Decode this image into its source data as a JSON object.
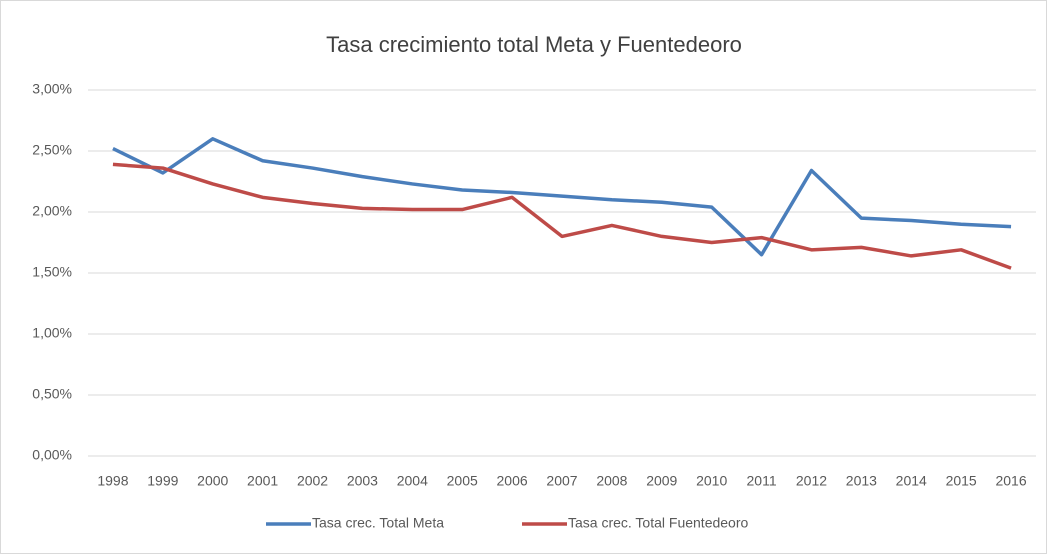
{
  "chart_data": {
    "type": "line",
    "title": "Tasa crecimiento total Meta y Fuentedeoro",
    "categories": [
      "1998",
      "1999",
      "2000",
      "2001",
      "2002",
      "2003",
      "2004",
      "2005",
      "2006",
      "2007",
      "2008",
      "2009",
      "2010",
      "2011",
      "2012",
      "2013",
      "2014",
      "2015",
      "2016"
    ],
    "series": [
      {
        "name": "Tasa crec. Total Meta",
        "color": "#4a7ebb",
        "values": [
          2.52,
          2.32,
          2.6,
          2.42,
          2.36,
          2.29,
          2.23,
          2.18,
          2.16,
          2.13,
          2.1,
          2.08,
          2.04,
          1.65,
          2.34,
          1.95,
          1.93,
          1.9,
          1.88
        ]
      },
      {
        "name": "Tasa crec. Total Fuentedeoro",
        "color": "#be4b48",
        "values": [
          2.39,
          2.36,
          2.23,
          2.12,
          2.07,
          2.03,
          2.02,
          2.02,
          2.12,
          1.8,
          1.89,
          1.8,
          1.75,
          1.79,
          1.69,
          1.71,
          1.64,
          1.69,
          1.54
        ]
      }
    ],
    "ylim": [
      0,
      3
    ],
    "yticks": [
      {
        "value": 0,
        "label": "0,00%"
      },
      {
        "value": 0.5,
        "label": "0,50%"
      },
      {
        "value": 1,
        "label": "1,00%"
      },
      {
        "value": 1.5,
        "label": "1,50%"
      },
      {
        "value": 2,
        "label": "2,00%"
      },
      {
        "value": 2.5,
        "label": "2,50%"
      },
      {
        "value": 3,
        "label": "3,00%"
      }
    ],
    "grid": true,
    "legend": "bottom"
  }
}
